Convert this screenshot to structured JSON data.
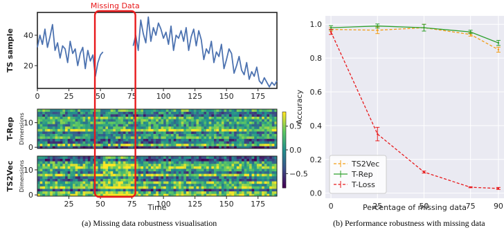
{
  "colors": {
    "ts_line": "#4c72b0",
    "missing_box": "#e8191b",
    "ts2vec": "#f39c12",
    "trep": "#2ca02c",
    "tloss": "#e8191b",
    "panel_bg": "#eaeaf2"
  },
  "captions": {
    "left": "(a) Missing data robustness visualisation",
    "right": "(b) Performance robustness with  missing data"
  },
  "chart_data": [
    {
      "type": "line",
      "panel": "a",
      "title": "",
      "annotation": "Missing Data",
      "ylabel": "TS sample",
      "xlim": [
        0,
        190
      ],
      "ylim": [
        5,
        55
      ],
      "x_ticks": [
        0,
        25,
        50,
        75,
        100,
        125,
        150,
        175
      ],
      "y_ticks": [
        20,
        40
      ],
      "missing_range": [
        50,
        75
      ],
      "series": [
        {
          "x": [
            0,
            2,
            4,
            6,
            8,
            10,
            12,
            14,
            16,
            18,
            20,
            22,
            24,
            26,
            28,
            30,
            32,
            34,
            36,
            38,
            40,
            42,
            44,
            46,
            48,
            50,
            52,
            76,
            78,
            80,
            82,
            84,
            86,
            88,
            90,
            92,
            94,
            96,
            98,
            100,
            102,
            104,
            106,
            108,
            110,
            112,
            114,
            116,
            118,
            120,
            122,
            124,
            126,
            128,
            130,
            132,
            134,
            136,
            138,
            140,
            142,
            144,
            146,
            148,
            150,
            152,
            154,
            156,
            158,
            160,
            162,
            164,
            166,
            168,
            170,
            172,
            174,
            176,
            178,
            180,
            182,
            184,
            186,
            188,
            190
          ],
          "y": [
            32,
            40,
            34,
            44,
            32,
            39,
            47,
            30,
            35,
            25,
            33,
            31,
            22,
            36,
            28,
            31,
            20,
            28,
            32,
            18,
            30,
            23,
            27,
            13,
            22,
            27,
            29,
            33,
            40,
            30,
            50,
            41,
            35,
            52,
            36,
            45,
            40,
            48,
            44,
            38,
            42,
            34,
            46,
            30,
            40,
            38,
            43,
            36,
            45,
            30,
            39,
            44,
            33,
            43,
            37,
            24,
            31,
            28,
            36,
            22,
            29,
            26,
            34,
            18,
            24,
            31,
            28,
            15,
            20,
            26,
            17,
            14,
            22,
            11,
            16,
            13,
            19,
            10,
            8,
            12,
            9,
            6,
            9,
            7,
            10
          ]
        }
      ]
    },
    {
      "type": "heatmap",
      "panel": "a",
      "ylabel": "T-Rep",
      "ylabel2": "Dimensions",
      "rows": 16,
      "cols": 190,
      "y_ticks": [
        0,
        10
      ],
      "colorbar": {
        "ticks": [
          0.5,
          0.0,
          -0.5
        ],
        "tick_labels": [
          "0.5",
          "0.0",
          "−0.5"
        ],
        "range": [
          -0.8,
          0.8
        ],
        "colormap": "viridis"
      }
    },
    {
      "type": "heatmap",
      "panel": "a",
      "ylabel": "TS2Vec",
      "ylabel2": "Dimensions",
      "xlabel": "Time",
      "rows": 16,
      "cols": 190,
      "y_ticks": [
        0,
        10
      ],
      "x_ticks": [
        25,
        50,
        75,
        100,
        125,
        150,
        175
      ]
    },
    {
      "type": "line",
      "panel": "b",
      "xlabel": "Percentage of missing data",
      "ylabel": "Accuracy",
      "x_ticks": [
        0,
        25,
        50,
        75,
        90
      ],
      "y_ticks": [
        0.0,
        0.2,
        0.4,
        0.6,
        0.8,
        1.0
      ],
      "y_tick_labels": [
        "0.0",
        "0.2",
        "0.4",
        "0.6",
        "0.8",
        "1.0"
      ],
      "xlim": [
        -3,
        93
      ],
      "ylim": [
        -0.03,
        1.05
      ],
      "grid": true,
      "legend_position": "bottom-left",
      "series": [
        {
          "name": "TS2Vec",
          "style": "dashed",
          "x": [
            0,
            25,
            50,
            75,
            90
          ],
          "y": [
            0.97,
            0.965,
            0.98,
            0.94,
            0.85
          ],
          "err": [
            0.01,
            0.02,
            0.02,
            0.01,
            0.015
          ]
        },
        {
          "name": "T-Rep",
          "style": "solid",
          "x": [
            0,
            25,
            50,
            75,
            90
          ],
          "y": [
            0.98,
            0.99,
            0.98,
            0.955,
            0.89
          ],
          "err": [
            0.012,
            0.012,
            0.02,
            0.01,
            0.015
          ]
        },
        {
          "name": "T-Loss",
          "style": "dashed",
          "x": [
            0,
            25,
            50,
            75,
            90
          ],
          "y": [
            0.955,
            0.35,
            0.125,
            0.035,
            0.028
          ],
          "err": [
            0.015,
            0.04,
            0.006,
            0.003,
            0.006
          ]
        }
      ]
    }
  ]
}
